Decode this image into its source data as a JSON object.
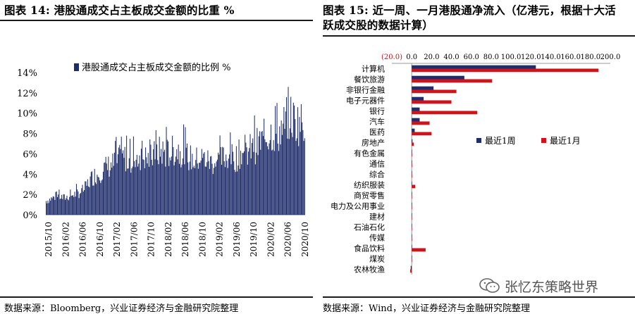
{
  "left": {
    "title": "图表 14: 港股通成交占主板成交金额的比重 %",
    "source": "数据来源：Bloomberg，兴业证券经济与金融研究院整理"
  },
  "right": {
    "title": "图表 15: 近一周、一月港股通净流入（亿港元，根据十大活跃成交股的数据计算）",
    "source": "数据来源：Wind，兴业证券经济与金融研究院整理"
  },
  "watermark": {
    "text": "张忆东策略世界",
    "icon": "wechat-icon"
  },
  "colors": {
    "navy": "#1f2d6b",
    "red": "#d0121b",
    "axis": "#888888",
    "text": "#000000"
  },
  "chart_data": [
    {
      "type": "bar",
      "title": "",
      "series": [
        {
          "name": "港股通成交占主板成交金额的比例 %"
        }
      ],
      "x_tick_labels": [
        "2015/10",
        "2016/02",
        "2016/06",
        "2016/10",
        "2017/02",
        "2017/06",
        "2017/10",
        "2018/02",
        "2018/06",
        "2018/10",
        "2019/02",
        "2019/06",
        "2019/10",
        "2020/02",
        "2020/06",
        "2020/10"
      ],
      "x_range": [
        "2015-10",
        "2020-11"
      ],
      "ylim": [
        0,
        14
      ],
      "y_ticks": [
        "0%",
        "2%",
        "4%",
        "6%",
        "8%",
        "10%",
        "12%",
        "14%"
      ],
      "level_by_month": [
        [
          "2015-10",
          1.4
        ],
        [
          "2015-11",
          1.6
        ],
        [
          "2015-12",
          1.8
        ],
        [
          "2016-01",
          1.9
        ],
        [
          "2016-02",
          1.7
        ],
        [
          "2016-03",
          1.8
        ],
        [
          "2016-04",
          2.0
        ],
        [
          "2016-05",
          2.1
        ],
        [
          "2016-06",
          2.3
        ],
        [
          "2016-07",
          2.6
        ],
        [
          "2016-08",
          3.3
        ],
        [
          "2016-09",
          3.9
        ],
        [
          "2016-10",
          4.1
        ],
        [
          "2016-11",
          4.4
        ],
        [
          "2016-12",
          4.8
        ],
        [
          "2017-01",
          5.0
        ],
        [
          "2017-02",
          5.2
        ],
        [
          "2017-03",
          5.6
        ],
        [
          "2017-04",
          5.8
        ],
        [
          "2017-05",
          5.7
        ],
        [
          "2017-06",
          5.6
        ],
        [
          "2017-07",
          5.8
        ],
        [
          "2017-08",
          6.0
        ],
        [
          "2017-09",
          5.9
        ],
        [
          "2017-10",
          5.6
        ],
        [
          "2017-11",
          5.9
        ],
        [
          "2017-12",
          6.2
        ],
        [
          "2018-01",
          6.5
        ],
        [
          "2018-02",
          6.2
        ],
        [
          "2018-03",
          6.3
        ],
        [
          "2018-04",
          6.5
        ],
        [
          "2018-05",
          6.6
        ],
        [
          "2018-06",
          6.4
        ],
        [
          "2018-07",
          6.0
        ],
        [
          "2018-08",
          5.7
        ],
        [
          "2018-09",
          5.4
        ],
        [
          "2018-10",
          5.8
        ],
        [
          "2018-11",
          5.7
        ],
        [
          "2018-12",
          5.5
        ],
        [
          "2019-01",
          5.3
        ],
        [
          "2019-02",
          5.4
        ],
        [
          "2019-03",
          5.6
        ],
        [
          "2019-04",
          5.8
        ],
        [
          "2019-05",
          6.1
        ],
        [
          "2019-06",
          5.7
        ],
        [
          "2019-07",
          5.9
        ],
        [
          "2019-08",
          6.4
        ],
        [
          "2019-09",
          6.1
        ],
        [
          "2019-10",
          6.6
        ],
        [
          "2019-11",
          6.8
        ],
        [
          "2019-12",
          7.2
        ],
        [
          "2020-01",
          7.6
        ],
        [
          "2020-02",
          8.0
        ],
        [
          "2020-03",
          8.4
        ],
        [
          "2020-04",
          8.2
        ],
        [
          "2020-05",
          8.4
        ],
        [
          "2020-06",
          9.1
        ],
        [
          "2020-07",
          10.0
        ],
        [
          "2020-08",
          9.7
        ],
        [
          "2020-09",
          9.4
        ],
        [
          "2020-10",
          9.3
        ]
      ],
      "peak_approx": 12.8,
      "legend_position": "top-left",
      "grid": false
    },
    {
      "type": "bar",
      "orientation": "horizontal",
      "title": "",
      "xlim": [
        -20,
        200
      ],
      "x_ticks": [
        "(20.0)",
        "0.0",
        "20.0",
        "40.0",
        "60.0",
        "80.0",
        "100.0",
        "120.0",
        "140.0",
        "160.0",
        "180.0",
        "200.0"
      ],
      "categories": [
        "计算机",
        "餐饮旅游",
        "非银行金融",
        "电子元器件",
        "银行",
        "汽车",
        "医药",
        "房地产",
        "有色金属",
        "通信",
        "综合",
        "纺织服装",
        "商贸零售",
        "电力及公用事业",
        "建材",
        "石油石化",
        "传媒",
        "食品饮料",
        "煤炭",
        "农林牧渔"
      ],
      "series": [
        {
          "name": "最近1周",
          "color": "#1f2d6b",
          "values": [
            125,
            53,
            22,
            12,
            8,
            8,
            3,
            0.8,
            0.4,
            0.3,
            0.2,
            0.2,
            0.2,
            0.2,
            0.2,
            0.2,
            0.2,
            0.3,
            0.2,
            -1
          ]
        },
        {
          "name": "最近1月",
          "color": "#d0121b",
          "values": [
            188,
            81,
            45,
            40,
            66,
            18,
            20,
            2,
            0.5,
            0.5,
            0.5,
            3.5,
            0.3,
            0.2,
            0.2,
            0.2,
            0.2,
            14,
            0.3,
            -1.5
          ]
        }
      ],
      "legend_position": "center-right",
      "grid": false
    }
  ]
}
